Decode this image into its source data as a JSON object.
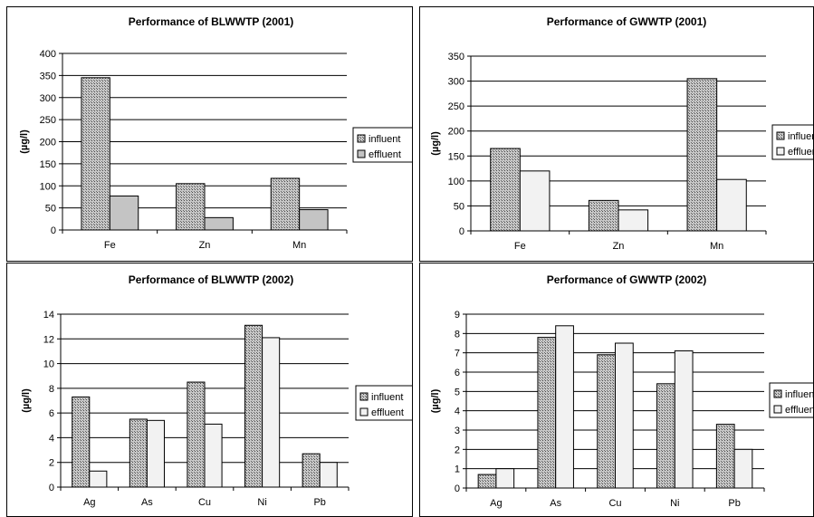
{
  "chart_data": [
    {
      "type": "bar",
      "title": "Performance of BLWWTP (2001)",
      "ylabel": "(µg/l)",
      "categories": [
        "Fe",
        "Zn",
        "Mn"
      ],
      "ylim": [
        0,
        400
      ],
      "ytick_step": 50,
      "series": [
        {
          "name": "influent",
          "values": [
            345,
            105,
            117
          ]
        },
        {
          "name": "effluent",
          "values": [
            77,
            28,
            46
          ]
        }
      ],
      "grid": true,
      "legend": "right",
      "colors": {
        "influent": "#b0b0b0",
        "effluent": "#c4c4c4"
      }
    },
    {
      "type": "bar",
      "title": "Performance of GWWTP (2001)",
      "ylabel": "(µg/l)",
      "categories": [
        "Fe",
        "Zn",
        "Mn"
      ],
      "ylim": [
        0,
        350
      ],
      "ytick_step": 50,
      "series": [
        {
          "name": "influent",
          "values": [
            165,
            61,
            305
          ]
        },
        {
          "name": "effluent",
          "values": [
            120,
            42,
            103
          ]
        }
      ],
      "grid": true,
      "legend": "right",
      "colors": {
        "influent": "#b0b0b0",
        "effluent": "#f2f2f2"
      }
    },
    {
      "type": "bar",
      "title": "Performance of BLWWTP (2002)",
      "ylabel": "(µg/l)",
      "categories": [
        "Ag",
        "As",
        "Cu",
        "Ni",
        "Pb"
      ],
      "ylim": [
        0,
        14
      ],
      "ytick_step": 2,
      "series": [
        {
          "name": "influent",
          "values": [
            7.3,
            5.5,
            8.5,
            13.1,
            2.7
          ]
        },
        {
          "name": "effluent",
          "values": [
            1.3,
            5.4,
            5.1,
            12.1,
            2.0
          ]
        }
      ],
      "grid": true,
      "legend": "right",
      "colors": {
        "influent": "#b0b0b0",
        "effluent": "#f2f2f2"
      }
    },
    {
      "type": "bar",
      "title": "Performance of GWWTP (2002)",
      "ylabel": "(µg/l)",
      "categories": [
        "Ag",
        "As",
        "Cu",
        "Ni",
        "Pb"
      ],
      "ylim": [
        0,
        9
      ],
      "ytick_step": 1,
      "series": [
        {
          "name": "influent",
          "values": [
            0.7,
            7.8,
            6.9,
            5.4,
            3.3
          ]
        },
        {
          "name": "effluent",
          "values": [
            1.0,
            8.4,
            7.5,
            7.1,
            2.0
          ]
        }
      ],
      "grid": true,
      "legend": "right",
      "colors": {
        "influent": "#b0b0b0",
        "effluent": "#f2f2f2"
      }
    }
  ]
}
